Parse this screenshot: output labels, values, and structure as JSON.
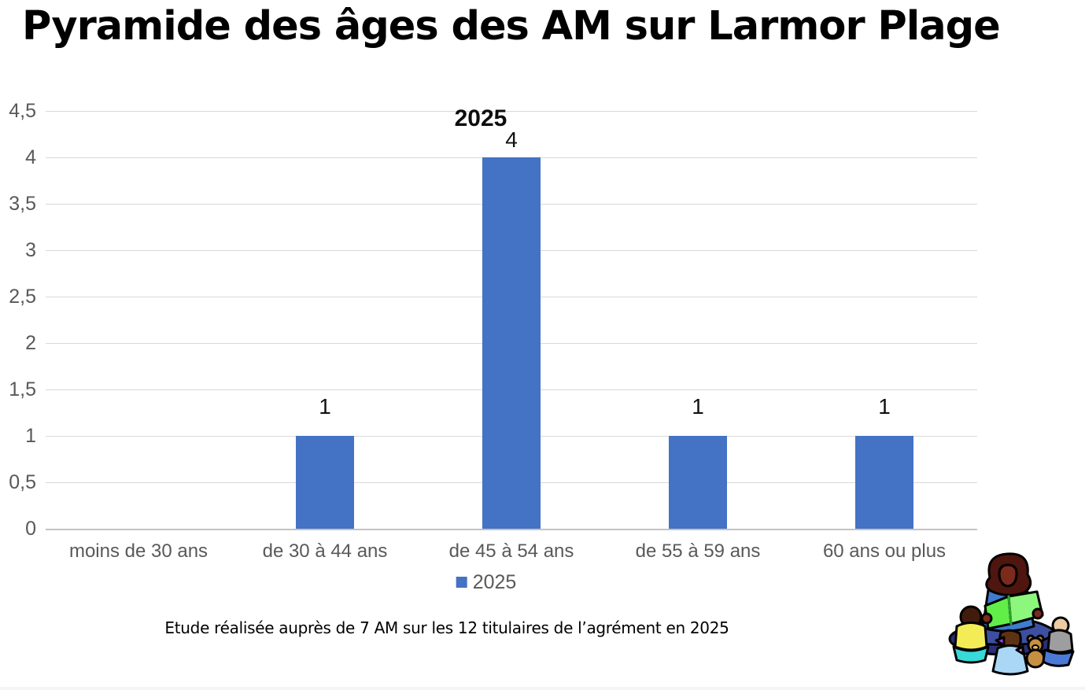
{
  "title": "Pyramide des âges des AM sur Larmor Plage",
  "chart_data": {
    "type": "bar",
    "title": "2025",
    "categories": [
      "moins de 30 ans",
      "de 30 à 44 ans",
      "de 45 à 54 ans",
      "de 55 à 59 ans",
      "60 ans ou plus"
    ],
    "series": [
      {
        "name": "2025",
        "values": [
          0,
          1,
          4,
          1,
          1
        ]
      }
    ],
    "data_labels": [
      "",
      "1",
      "4",
      "1",
      "1"
    ],
    "xlabel": "",
    "ylabel": "",
    "ylim": [
      0,
      4.5
    ],
    "y_tick_interval": 0.5,
    "y_tick_labels_top_to_bottom": [
      "4,5",
      "4",
      "3,5",
      "3",
      "2,5",
      "2",
      "1,5",
      "1",
      "0,5",
      "0"
    ],
    "grid": true,
    "legend_position": "bottom-center",
    "legend_label": "2025",
    "colors": {
      "bar": "#4472C4",
      "axis_text": "#595959",
      "gridline": "#d9d9d9",
      "data_label_text": "#111111",
      "title_text": "#000000"
    }
  },
  "caption": "Etude réalisée auprès de 7 AM sur les 12 titulaires de l’agrément en 2025",
  "clipart": {
    "name": "storytime-clipart"
  }
}
